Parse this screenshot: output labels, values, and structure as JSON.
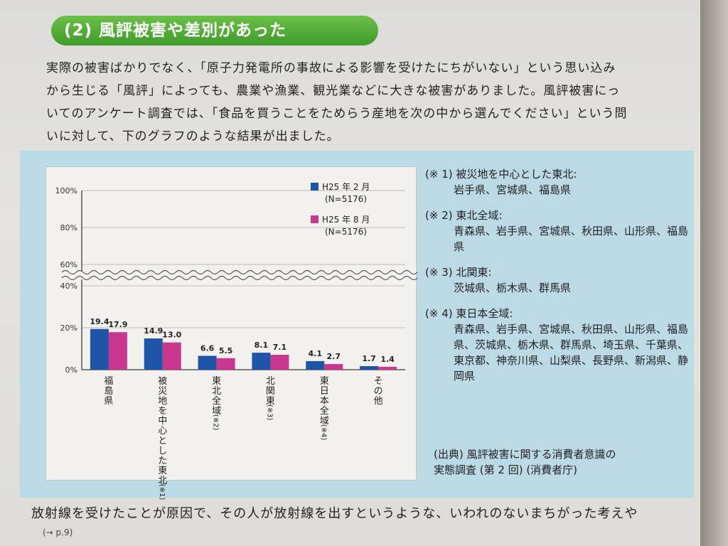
{
  "heading": "(2) 風評被害や差別があった",
  "paragraph": [
    "実際の被害ばかりでなく、「原子力発電所の事故による影響を受けたにちがいない」という思い込み",
    "から生じる「風評」によっても、農業や漁業、観光業などに大きな被害がありました。風評被害にっ",
    "いてのアンケート調査では、「食品を買うことをためらう産地を次の中から選んでください」という問",
    "いに対して、下のグラフのような結果が出ました。"
  ],
  "chart_data": {
    "type": "bar",
    "categories": [
      "福島県",
      "被災地を中心とした東北(※1)",
      "東北全域(※2)",
      "北関東(※3)",
      "東日本全域(※4)",
      "その他"
    ],
    "series": [
      {
        "name": "H25年2月 (N=5176)",
        "values": [
          19.4,
          14.9,
          6.6,
          8.1,
          4.1,
          1.7
        ]
      },
      {
        "name": "H25年8月 (N=5176)",
        "values": [
          17.9,
          13.0,
          5.5,
          7.1,
          2.7,
          1.4
        ]
      }
    ],
    "yticks": [
      "0%",
      "20%",
      "40%",
      "60%",
      "80%",
      "100%"
    ],
    "ylim": [
      0,
      100
    ],
    "axis_break": "between 40% and 60%",
    "legend": [
      {
        "name": "H25 年 2 月",
        "n": "(N=5176)",
        "color": "#1f55a8"
      },
      {
        "name": "H25 年 8 月",
        "n": "(N=5176)",
        "color": "#c8388f"
      }
    ],
    "category_labels": [
      {
        "text": "福島県",
        "note": ""
      },
      {
        "text": "被災地を中心とした東北",
        "note": "(※1)"
      },
      {
        "text": "東北全域",
        "note": "(※2)"
      },
      {
        "text": "北関東",
        "note": "(※3)"
      },
      {
        "text": "東日本全域",
        "note": "(※4)"
      },
      {
        "text": "その他",
        "note": ""
      }
    ]
  },
  "notes": [
    {
      "key": "(※ 1)",
      "title": "被災地を中心とした東北:",
      "body": "岩手県、宮城県、福島県"
    },
    {
      "key": "(※ 2)",
      "title": "東北全域:",
      "body": "青森県、岩手県、宮城県、秋田県、山形県、福島県"
    },
    {
      "key": "(※ 3)",
      "title": "北関東:",
      "body": "茨城県、栃木県、群馬県"
    },
    {
      "key": "(※ 4)",
      "title": "東日本全域:",
      "body": "青森県、岩手県、宮城県、秋田県、山形県、福島県、茨城県、栃木県、群馬県、埼玉県、千葉県、東京都、神奈川県、山梨県、長野県、新潟県、静岡県"
    }
  ],
  "source_line1": "(出典) 風評被害に関する消費者意識の",
  "source_line2": "実態調査 (第 2 回) (消費者庁)",
  "bottom_text": "放射線を受けたことが原因で、その人が放射線を出すというような、いわれのないまちがった考えや",
  "bottom_ref": "(→ p.9)",
  "colors": {
    "series1": "#1f55a8",
    "series2": "#c8388f",
    "heading": "#4aa633",
    "panel": "#bcd9e6"
  }
}
